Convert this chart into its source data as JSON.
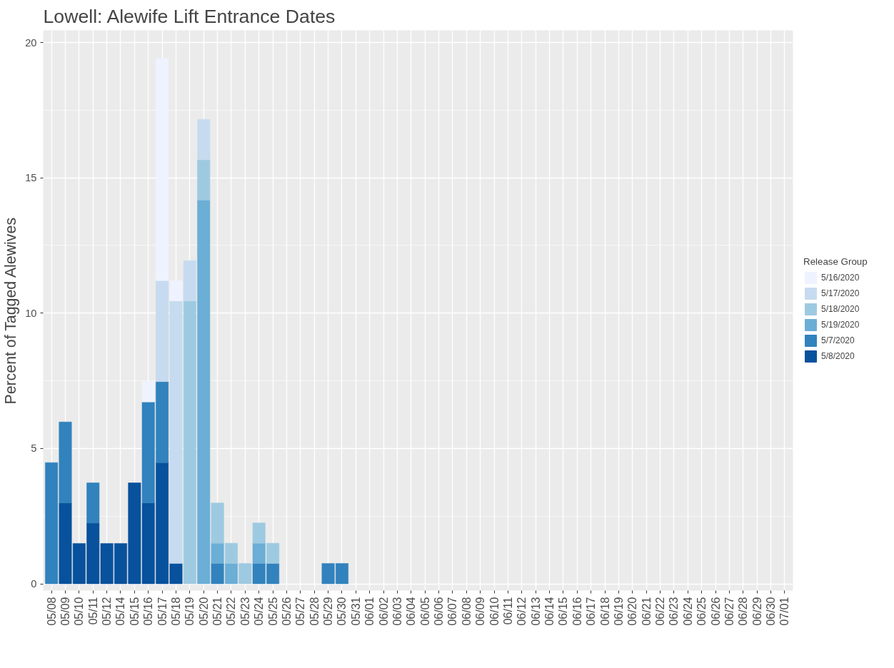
{
  "chart_data": {
    "type": "bar",
    "stacked": true,
    "title": "Lowell: Alewife Lift Entrance Dates",
    "ylabel": "Percent of Tagged Alewives",
    "legend_title": "Release Group",
    "legend": "right",
    "grid": true,
    "categories": [
      "05/08",
      "05/09",
      "05/10",
      "05/11",
      "05/12",
      "05/14",
      "05/15",
      "05/16",
      "05/17",
      "05/18",
      "05/19",
      "05/20",
      "05/21",
      "05/22",
      "05/23",
      "05/24",
      "05/25",
      "05/26",
      "05/27",
      "05/28",
      "05/29",
      "05/30",
      "05/31",
      "06/01",
      "06/02",
      "06/03",
      "06/04",
      "06/05",
      "06/06",
      "06/07",
      "06/08",
      "06/09",
      "06/10",
      "06/11",
      "06/12",
      "06/13",
      "06/14",
      "06/15",
      "06/16",
      "06/17",
      "06/18",
      "06/19",
      "06/20",
      "06/21",
      "06/22",
      "06/23",
      "06/24",
      "06/25",
      "06/26",
      "06/27",
      "06/28",
      "06/29",
      "06/30",
      "07/01"
    ],
    "ylim": [
      -0.25,
      20.45
    ],
    "yticks": [
      0,
      5,
      10,
      15,
      20
    ],
    "series": [
      {
        "name": "5/8/2020",
        "color": "#08519c",
        "values": [
          null,
          2.99,
          1.49,
          2.24,
          1.49,
          1.49,
          3.73,
          2.99,
          4.48,
          0.75,
          null,
          null,
          null,
          null,
          null,
          null,
          null,
          null,
          null,
          null,
          null,
          null,
          null,
          null,
          null,
          null,
          null,
          null,
          null,
          null,
          null,
          null,
          null,
          null,
          null,
          null,
          null,
          null,
          null,
          null,
          null,
          null,
          null,
          null,
          null,
          null,
          null,
          null,
          null,
          null,
          null,
          null,
          null,
          null
        ]
      },
      {
        "name": "5/7/2020",
        "color": "#3182bd",
        "values": [
          4.48,
          2.99,
          null,
          1.49,
          null,
          null,
          null,
          3.73,
          2.99,
          null,
          null,
          null,
          0.75,
          null,
          null,
          0.75,
          0.75,
          null,
          null,
          null,
          0.75,
          0.75,
          null,
          null,
          null,
          null,
          null,
          null,
          null,
          null,
          null,
          null,
          null,
          null,
          null,
          null,
          null,
          null,
          null,
          null,
          null,
          null,
          null,
          null,
          null,
          null,
          null,
          null,
          null,
          null,
          null,
          null,
          null,
          null
        ]
      },
      {
        "name": "5/19/2020",
        "color": "#6baed6",
        "values": [
          null,
          null,
          null,
          null,
          null,
          null,
          null,
          null,
          null,
          null,
          null,
          14.18,
          0.75,
          0.75,
          null,
          0.75,
          null,
          null,
          null,
          null,
          null,
          null,
          null,
          null,
          null,
          null,
          null,
          null,
          null,
          null,
          null,
          null,
          null,
          null,
          null,
          null,
          null,
          null,
          null,
          null,
          null,
          null,
          null,
          null,
          null,
          null,
          null,
          null,
          null,
          null,
          null,
          null,
          null,
          null
        ]
      },
      {
        "name": "5/18/2020",
        "color": "#9ecae1",
        "values": [
          null,
          null,
          null,
          null,
          null,
          null,
          null,
          null,
          null,
          null,
          10.45,
          1.49,
          1.49,
          0.75,
          0.75,
          0.75,
          0.75,
          null,
          null,
          null,
          null,
          null,
          null,
          null,
          null,
          null,
          null,
          null,
          null,
          null,
          null,
          null,
          null,
          null,
          null,
          null,
          null,
          null,
          null,
          null,
          null,
          null,
          null,
          null,
          null,
          null,
          null,
          null,
          null,
          null,
          null,
          null,
          null,
          null
        ]
      },
      {
        "name": "5/17/2020",
        "color": "#c6dbef",
        "values": [
          null,
          null,
          null,
          null,
          null,
          null,
          null,
          null,
          3.73,
          9.7,
          1.49,
          1.49,
          null,
          null,
          null,
          null,
          null,
          null,
          null,
          null,
          null,
          null,
          null,
          null,
          null,
          null,
          null,
          null,
          null,
          null,
          null,
          null,
          null,
          null,
          null,
          null,
          null,
          null,
          null,
          null,
          null,
          null,
          null,
          null,
          null,
          null,
          null,
          null,
          null,
          null,
          null,
          null,
          null,
          null
        ]
      },
      {
        "name": "5/16/2020",
        "color": "#eff3ff",
        "values": [
          null,
          null,
          null,
          null,
          null,
          null,
          null,
          0.75,
          8.21,
          0.75,
          null,
          null,
          null,
          null,
          null,
          null,
          null,
          null,
          null,
          null,
          null,
          null,
          null,
          null,
          null,
          null,
          null,
          null,
          null,
          null,
          null,
          null,
          null,
          null,
          null,
          null,
          null,
          null,
          null,
          null,
          null,
          null,
          null,
          null,
          null,
          null,
          null,
          null,
          null,
          null,
          null,
          null,
          null,
          null
        ]
      }
    ]
  }
}
